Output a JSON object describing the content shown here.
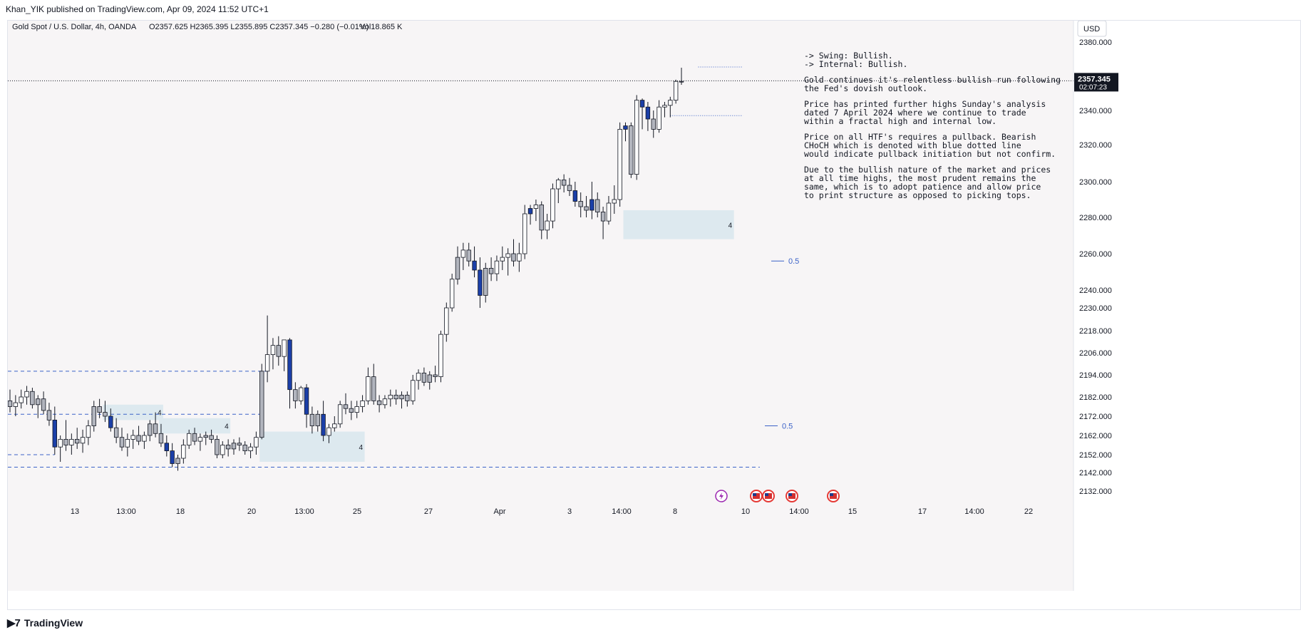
{
  "header": {
    "published": "Khan_YIK published on TradingView.com, Apr 09, 2024 11:52 UTC+1"
  },
  "legend": {
    "symbol": "Gold Spot / U.S. Dollar, 4h, OANDA",
    "ohlc": "O2357.625  H2365.395  L2355.895  C2357.345  −0.280 (−0.01%)",
    "volume": "Vol18.865 K"
  },
  "currency": "USD",
  "price_tag": {
    "price": "2357.345",
    "countdown": "02:07:23"
  },
  "footer": {
    "brand": "TradingView",
    "logo": "tradingview-logo"
  },
  "colors": {
    "bull": "#b2b5be",
    "bear": "#1b3fa8",
    "bull_alt": "#5b86c7",
    "wick": "#131722",
    "dashed_line": "#3c63c8",
    "zone": "#dde9ef",
    "fib_label": "#3c63c8"
  },
  "annotation_text": [
    "-> Swing:  Bullish.",
    "-> Internal:  Bullish.",
    "",
    "Gold continues it's relentless bullish run following",
    "the Fed's dovish outlook.",
    "",
    "Price has printed further highs Sunday's analysis",
    "dated 7 April 2024 where we continue to trade",
    "within a fractal high and internal low.",
    "",
    "Price on all HTF's requires a pullback.  Bearish",
    "CHoCH which is denoted with blue dotted line",
    "would indicate pullback initiation but not confirm.",
    "",
    "Due to the bullish nature of the market and prices",
    "at all time highs, the most prudent remains the",
    "same, which is to adopt patience and allow price",
    "to print structure as opposed to picking tops."
  ],
  "chart_data": {
    "type": "candlestick",
    "symbol": "XAUUSD",
    "timeframe": "4h",
    "y_ticks": [
      "2380.000",
      "2360.000",
      "2340.000",
      "2320.000",
      "2300.000",
      "2280.000",
      "2260.000",
      "2240.000",
      "2230.000",
      "2218.000",
      "2206.000",
      "2194.000",
      "2182.000",
      "2172.000",
      "2162.000",
      "2152.000",
      "2142.000",
      "2132.000"
    ],
    "x_ticks": [
      "13",
      "13:00",
      "18",
      "20",
      "13:00",
      "25",
      "27",
      "Apr",
      "3",
      "14:00",
      "8",
      "10",
      "14:00",
      "15",
      "17",
      "14:00",
      "22"
    ],
    "candles": [
      [
        2180,
        2186,
        2174,
        2177
      ],
      [
        2177,
        2183,
        2172,
        2179
      ],
      [
        2179,
        2186,
        2176,
        2182
      ],
      [
        2182,
        2188,
        2178,
        2185
      ],
      [
        2185,
        2187,
        2176,
        2178
      ],
      [
        2178,
        2183,
        2171,
        2181
      ],
      [
        2181,
        2185,
        2173,
        2175
      ],
      [
        2175,
        2179,
        2167,
        2170
      ],
      [
        2170,
        2177,
        2152,
        2156
      ],
      [
        2156,
        2162,
        2148,
        2160
      ],
      [
        2160,
        2170,
        2154,
        2157
      ],
      [
        2157,
        2163,
        2152,
        2160
      ],
      [
        2160,
        2166,
        2155,
        2158
      ],
      [
        2158,
        2165,
        2153,
        2161
      ],
      [
        2161,
        2170,
        2157,
        2167
      ],
      [
        2167,
        2180,
        2164,
        2177
      ],
      [
        2177,
        2181,
        2171,
        2174
      ],
      [
        2174,
        2180,
        2169,
        2172
      ],
      [
        2172,
        2176,
        2164,
        2166
      ],
      [
        2166,
        2171,
        2158,
        2161
      ],
      [
        2161,
        2166,
        2154,
        2156
      ],
      [
        2156,
        2163,
        2151,
        2160
      ],
      [
        2160,
        2165,
        2155,
        2162
      ],
      [
        2162,
        2167,
        2157,
        2159
      ],
      [
        2159,
        2164,
        2155,
        2162
      ],
      [
        2162,
        2170,
        2159,
        2168
      ],
      [
        2168,
        2174,
        2161,
        2163
      ],
      [
        2163,
        2168,
        2156,
        2158
      ],
      [
        2158,
        2162,
        2151,
        2154
      ],
      [
        2154,
        2158,
        2145,
        2147
      ],
      [
        2147,
        2152,
        2143,
        2150
      ],
      [
        2150,
        2160,
        2147,
        2157
      ],
      [
        2157,
        2165,
        2155,
        2163
      ],
      [
        2163,
        2166,
        2157,
        2159
      ],
      [
        2159,
        2163,
        2154,
        2161
      ],
      [
        2161,
        2164,
        2157,
        2162
      ],
      [
        2162,
        2165,
        2158,
        2160
      ],
      [
        2160,
        2162,
        2150,
        2152
      ],
      [
        2152,
        2159,
        2150,
        2157
      ],
      [
        2157,
        2160,
        2151,
        2155
      ],
      [
        2155,
        2160,
        2152,
        2158
      ],
      [
        2158,
        2161,
        2154,
        2157
      ],
      [
        2157,
        2159,
        2152,
        2154
      ],
      [
        2154,
        2158,
        2150,
        2156
      ],
      [
        2156,
        2164,
        2152,
        2161
      ],
      [
        2161,
        2200,
        2160,
        2196
      ],
      [
        2196,
        2226,
        2190,
        2205
      ],
      [
        2205,
        2214,
        2197,
        2210
      ],
      [
        2210,
        2215,
        2199,
        2204
      ],
      [
        2204,
        2212,
        2196,
        2213
      ],
      [
        2213,
        2214,
        2176,
        2186
      ],
      [
        2186,
        2190,
        2176,
        2180
      ],
      [
        2180,
        2188,
        2178,
        2187
      ],
      [
        2187,
        2189,
        2166,
        2173
      ],
      [
        2173,
        2177,
        2163,
        2167
      ],
      [
        2167,
        2175,
        2164,
        2173
      ],
      [
        2173,
        2180,
        2159,
        2162
      ],
      [
        2162,
        2168,
        2158,
        2166
      ],
      [
        2166,
        2172,
        2164,
        2168
      ],
      [
        2168,
        2180,
        2166,
        2178
      ],
      [
        2178,
        2184,
        2173,
        2176
      ],
      [
        2176,
        2180,
        2170,
        2174
      ],
      [
        2174,
        2180,
        2171,
        2177
      ],
      [
        2177,
        2183,
        2174,
        2180
      ],
      [
        2180,
        2198,
        2178,
        2193
      ],
      [
        2193,
        2200,
        2178,
        2180
      ],
      [
        2180,
        2183,
        2174,
        2178
      ],
      [
        2178,
        2183,
        2176,
        2181
      ],
      [
        2181,
        2186,
        2177,
        2183
      ],
      [
        2183,
        2186,
        2178,
        2181
      ],
      [
        2181,
        2185,
        2176,
        2183
      ],
      [
        2183,
        2185,
        2177,
        2180
      ],
      [
        2180,
        2194,
        2178,
        2191
      ],
      [
        2191,
        2197,
        2186,
        2195
      ],
      [
        2195,
        2198,
        2188,
        2190
      ],
      [
        2190,
        2196,
        2186,
        2194
      ],
      [
        2194,
        2199,
        2190,
        2193
      ],
      [
        2193,
        2218,
        2190,
        2216
      ],
      [
        2216,
        2233,
        2212,
        2230
      ],
      [
        2230,
        2249,
        2228,
        2246
      ],
      [
        2246,
        2264,
        2243,
        2258
      ],
      [
        2258,
        2266,
        2251,
        2262
      ],
      [
        2262,
        2266,
        2253,
        2256
      ],
      [
        2256,
        2264,
        2247,
        2251
      ],
      [
        2251,
        2258,
        2230,
        2237
      ],
      [
        2237,
        2255,
        2233,
        2252
      ],
      [
        2252,
        2258,
        2245,
        2249
      ],
      [
        2249,
        2259,
        2245,
        2256
      ],
      [
        2256,
        2264,
        2251,
        2258
      ],
      [
        2258,
        2263,
        2248,
        2260
      ],
      [
        2260,
        2268,
        2253,
        2256
      ],
      [
        2256,
        2266,
        2250,
        2260
      ],
      [
        2260,
        2287,
        2257,
        2282
      ],
      [
        2282,
        2287,
        2276,
        2285
      ],
      [
        2285,
        2290,
        2278,
        2287
      ],
      [
        2287,
        2289,
        2268,
        2273
      ],
      [
        2273,
        2282,
        2268,
        2278
      ],
      [
        2278,
        2299,
        2274,
        2296
      ],
      [
        2296,
        2302,
        2288,
        2301
      ],
      [
        2301,
        2304,
        2294,
        2298
      ],
      [
        2298,
        2302,
        2292,
        2295
      ],
      [
        2295,
        2300,
        2286,
        2289
      ],
      [
        2289,
        2294,
        2280,
        2286
      ],
      [
        2286,
        2292,
        2280,
        2284
      ],
      [
        2284,
        2300,
        2279,
        2290
      ],
      [
        2290,
        2294,
        2280,
        2283
      ],
      [
        2283,
        2286,
        2268,
        2278
      ],
      [
        2278,
        2292,
        2276,
        2288
      ],
      [
        2288,
        2298,
        2282,
        2290
      ],
      [
        2290,
        2333,
        2286,
        2329
      ],
      [
        2329,
        2333,
        2322,
        2331
      ],
      [
        2331,
        2333,
        2302,
        2304
      ],
      [
        2304,
        2349,
        2301,
        2346
      ],
      [
        2346,
        2347,
        2329,
        2342
      ],
      [
        2342,
        2345,
        2328,
        2335
      ],
      [
        2335,
        2340,
        2324,
        2329
      ],
      [
        2329,
        2346,
        2327,
        2342
      ],
      [
        2342,
        2345,
        2336,
        2343
      ],
      [
        2343,
        2348,
        2336,
        2346
      ],
      [
        2346,
        2358,
        2344,
        2357
      ],
      [
        2357,
        2365,
        2355,
        2357
      ]
    ],
    "bear_indices": [
      8,
      18,
      28,
      29,
      50,
      53,
      56,
      83,
      84,
      93,
      101,
      104,
      110,
      113,
      114
    ],
    "last_close": 2357.345,
    "range_bands": [
      {
        "label": "4",
        "from_index": 17,
        "to_index": 27,
        "low": 2170,
        "high": 2178
      },
      {
        "label": "4",
        "from_index": 27,
        "to_index": 39,
        "low": 2163,
        "high": 2171
      },
      {
        "label": "4",
        "from_index": 45,
        "to_index": 63,
        "low": 2148,
        "high": 2164
      },
      {
        "label": "4",
        "from_index": 110,
        "to_index": 129,
        "low": 2268,
        "high": 2284
      }
    ],
    "horizontal_levels": [
      {
        "style": "dashed",
        "value": 2196,
        "to_index": 46
      },
      {
        "style": "dashed",
        "value": 2173,
        "to_index": 45
      },
      {
        "style": "dashed",
        "value": 2152,
        "to_index": 8
      },
      {
        "style": "dashed",
        "value": 2145,
        "to_index": 134
      },
      {
        "style": "dotted",
        "value": 2365.4,
        "from_index": 123,
        "to_index": 131
      },
      {
        "style": "dotted",
        "value": 2337,
        "from_index": 118,
        "to_index": 131
      }
    ],
    "fib_labels": [
      {
        "label": "0.5",
        "value": 2256
      },
      {
        "label": "0.5",
        "value": 2167
      }
    ],
    "event_markers": [
      "lightning",
      "us-flag",
      "us-flag",
      "us-flag",
      "us-flag"
    ]
  }
}
